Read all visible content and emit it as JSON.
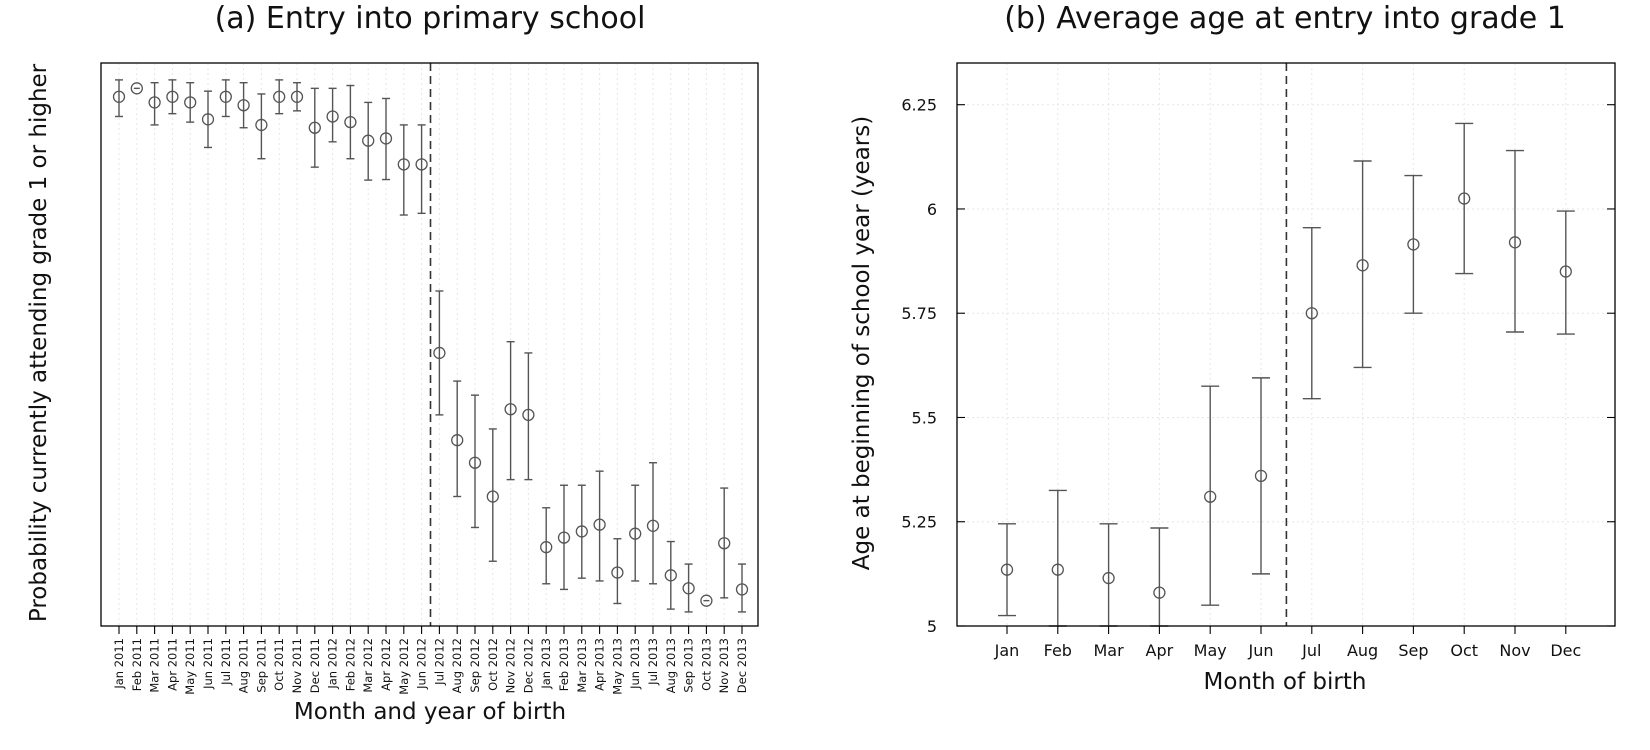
{
  "chart_data": [
    {
      "type": "scatter",
      "title": "(a) Entry into primary school",
      "xlabel": "Month and year of birth",
      "ylabel": "Probability currently attending grade 1 or higher",
      "y_tick_labels": "none",
      "ylim": [
        0,
        1
      ],
      "categories": [
        "Jan 2011",
        "Feb 2011",
        "Mar 2011",
        "Apr 2011",
        "May 2011",
        "Jun 2011",
        "Jul 2011",
        "Aug 2011",
        "Sep 2011",
        "Oct 2011",
        "Nov 2011",
        "Dec 2011",
        "Jan 2012",
        "Feb 2012",
        "Mar 2012",
        "Apr 2012",
        "May 2012",
        "Jun 2012",
        "Jul 2012",
        "Aug 2012",
        "Sep 2012",
        "Oct 2012",
        "Nov 2012",
        "Dec 2012",
        "Jan 2013",
        "Feb 2013",
        "Mar 2013",
        "Apr 2013",
        "May 2013",
        "Jun 2013",
        "Jul 2013",
        "Aug 2013",
        "Sep 2013",
        "Oct 2013",
        "Nov 2013",
        "Dec 2013"
      ],
      "values": [
        0.94,
        0.955,
        0.93,
        0.94,
        0.93,
        0.9,
        0.94,
        0.925,
        0.89,
        0.94,
        0.94,
        0.885,
        0.905,
        0.895,
        0.862,
        0.866,
        0.82,
        0.82,
        0.485,
        0.33,
        0.29,
        0.23,
        0.385,
        0.375,
        0.14,
        0.157,
        0.168,
        0.18,
        0.095,
        0.164,
        0.178,
        0.09,
        0.067,
        0.045,
        0.147,
        0.065
      ],
      "lower": [
        0.905,
        0.955,
        0.89,
        0.91,
        0.895,
        0.85,
        0.905,
        0.885,
        0.83,
        0.91,
        0.915,
        0.815,
        0.86,
        0.83,
        0.792,
        0.793,
        0.73,
        0.733,
        0.375,
        0.23,
        0.175,
        0.115,
        0.26,
        0.26,
        0.075,
        0.065,
        0.085,
        0.08,
        0.04,
        0.08,
        0.075,
        0.03,
        0.025,
        0.045,
        0.05,
        0.025
      ],
      "upper": [
        0.97,
        0.955,
        0.965,
        0.97,
        0.965,
        0.95,
        0.97,
        0.965,
        0.945,
        0.97,
        0.965,
        0.955,
        0.955,
        0.96,
        0.93,
        0.937,
        0.89,
        0.89,
        0.595,
        0.435,
        0.41,
        0.35,
        0.505,
        0.485,
        0.21,
        0.25,
        0.25,
        0.275,
        0.155,
        0.25,
        0.29,
        0.15,
        0.11,
        0.045,
        0.245,
        0.11
      ],
      "cutoff_after": "Jun 2012"
    },
    {
      "type": "scatter",
      "title": "(b) Average age at entry into grade 1",
      "xlabel": "Month of birth",
      "ylabel": "Age at beginning of school year (years)",
      "ylim": [
        5.0,
        6.35
      ],
      "yticks": [
        "5",
        "5.25",
        "5.5",
        "5.75",
        "6",
        "6.25"
      ],
      "categories": [
        "Jan",
        "Feb",
        "Mar",
        "Apr",
        "May",
        "Jun",
        "Jul",
        "Aug",
        "Sep",
        "Oct",
        "Nov",
        "Dec"
      ],
      "values": [
        5.135,
        5.135,
        5.115,
        5.08,
        5.31,
        5.36,
        5.75,
        5.865,
        5.915,
        6.025,
        5.92,
        5.85
      ],
      "lower": [
        5.025,
        5.0,
        5.0,
        5.0,
        5.05,
        5.125,
        5.545,
        5.62,
        5.75,
        5.845,
        5.705,
        5.7
      ],
      "upper": [
        5.245,
        5.325,
        5.245,
        5.235,
        5.575,
        5.595,
        5.955,
        6.115,
        6.08,
        6.205,
        6.14,
        5.995
      ],
      "cutoff_after": "Jun"
    }
  ]
}
